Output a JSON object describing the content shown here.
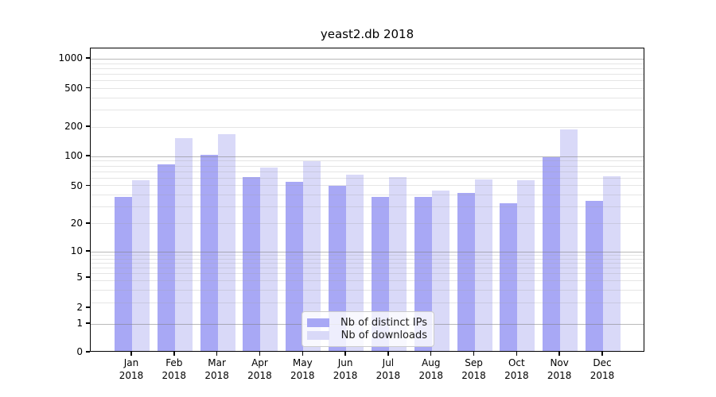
{
  "chart_data": {
    "type": "bar",
    "title": "yeast2.db 2018",
    "categories": [
      "Jan",
      "Feb",
      "Mar",
      "Apr",
      "May",
      "Jun",
      "Jul",
      "Aug",
      "Sep",
      "Oct",
      "Nov",
      "Dec"
    ],
    "year_label": "2018",
    "series": [
      {
        "name": "Nb of distinct IPs",
        "color": "#a8a8f5",
        "values": [
          37,
          80,
          100,
          60,
          53,
          49,
          37,
          37,
          41,
          32,
          94,
          34
        ]
      },
      {
        "name": "Nb of downloads",
        "color": "#d9d9f8",
        "values": [
          55,
          148,
          163,
          75,
          87,
          63,
          60,
          43,
          56,
          55,
          183,
          61
        ]
      }
    ],
    "xlabel": "",
    "ylabel": "",
    "scale": "symlog",
    "yticks": [
      0,
      1,
      2,
      5,
      10,
      20,
      50,
      100,
      200,
      500,
      1000
    ],
    "ylim": [
      0,
      1250
    ],
    "grid": {
      "horizontal_major": true,
      "horizontal_minor": true,
      "vertical": false
    },
    "legend": {
      "position": "bottom-center"
    }
  }
}
